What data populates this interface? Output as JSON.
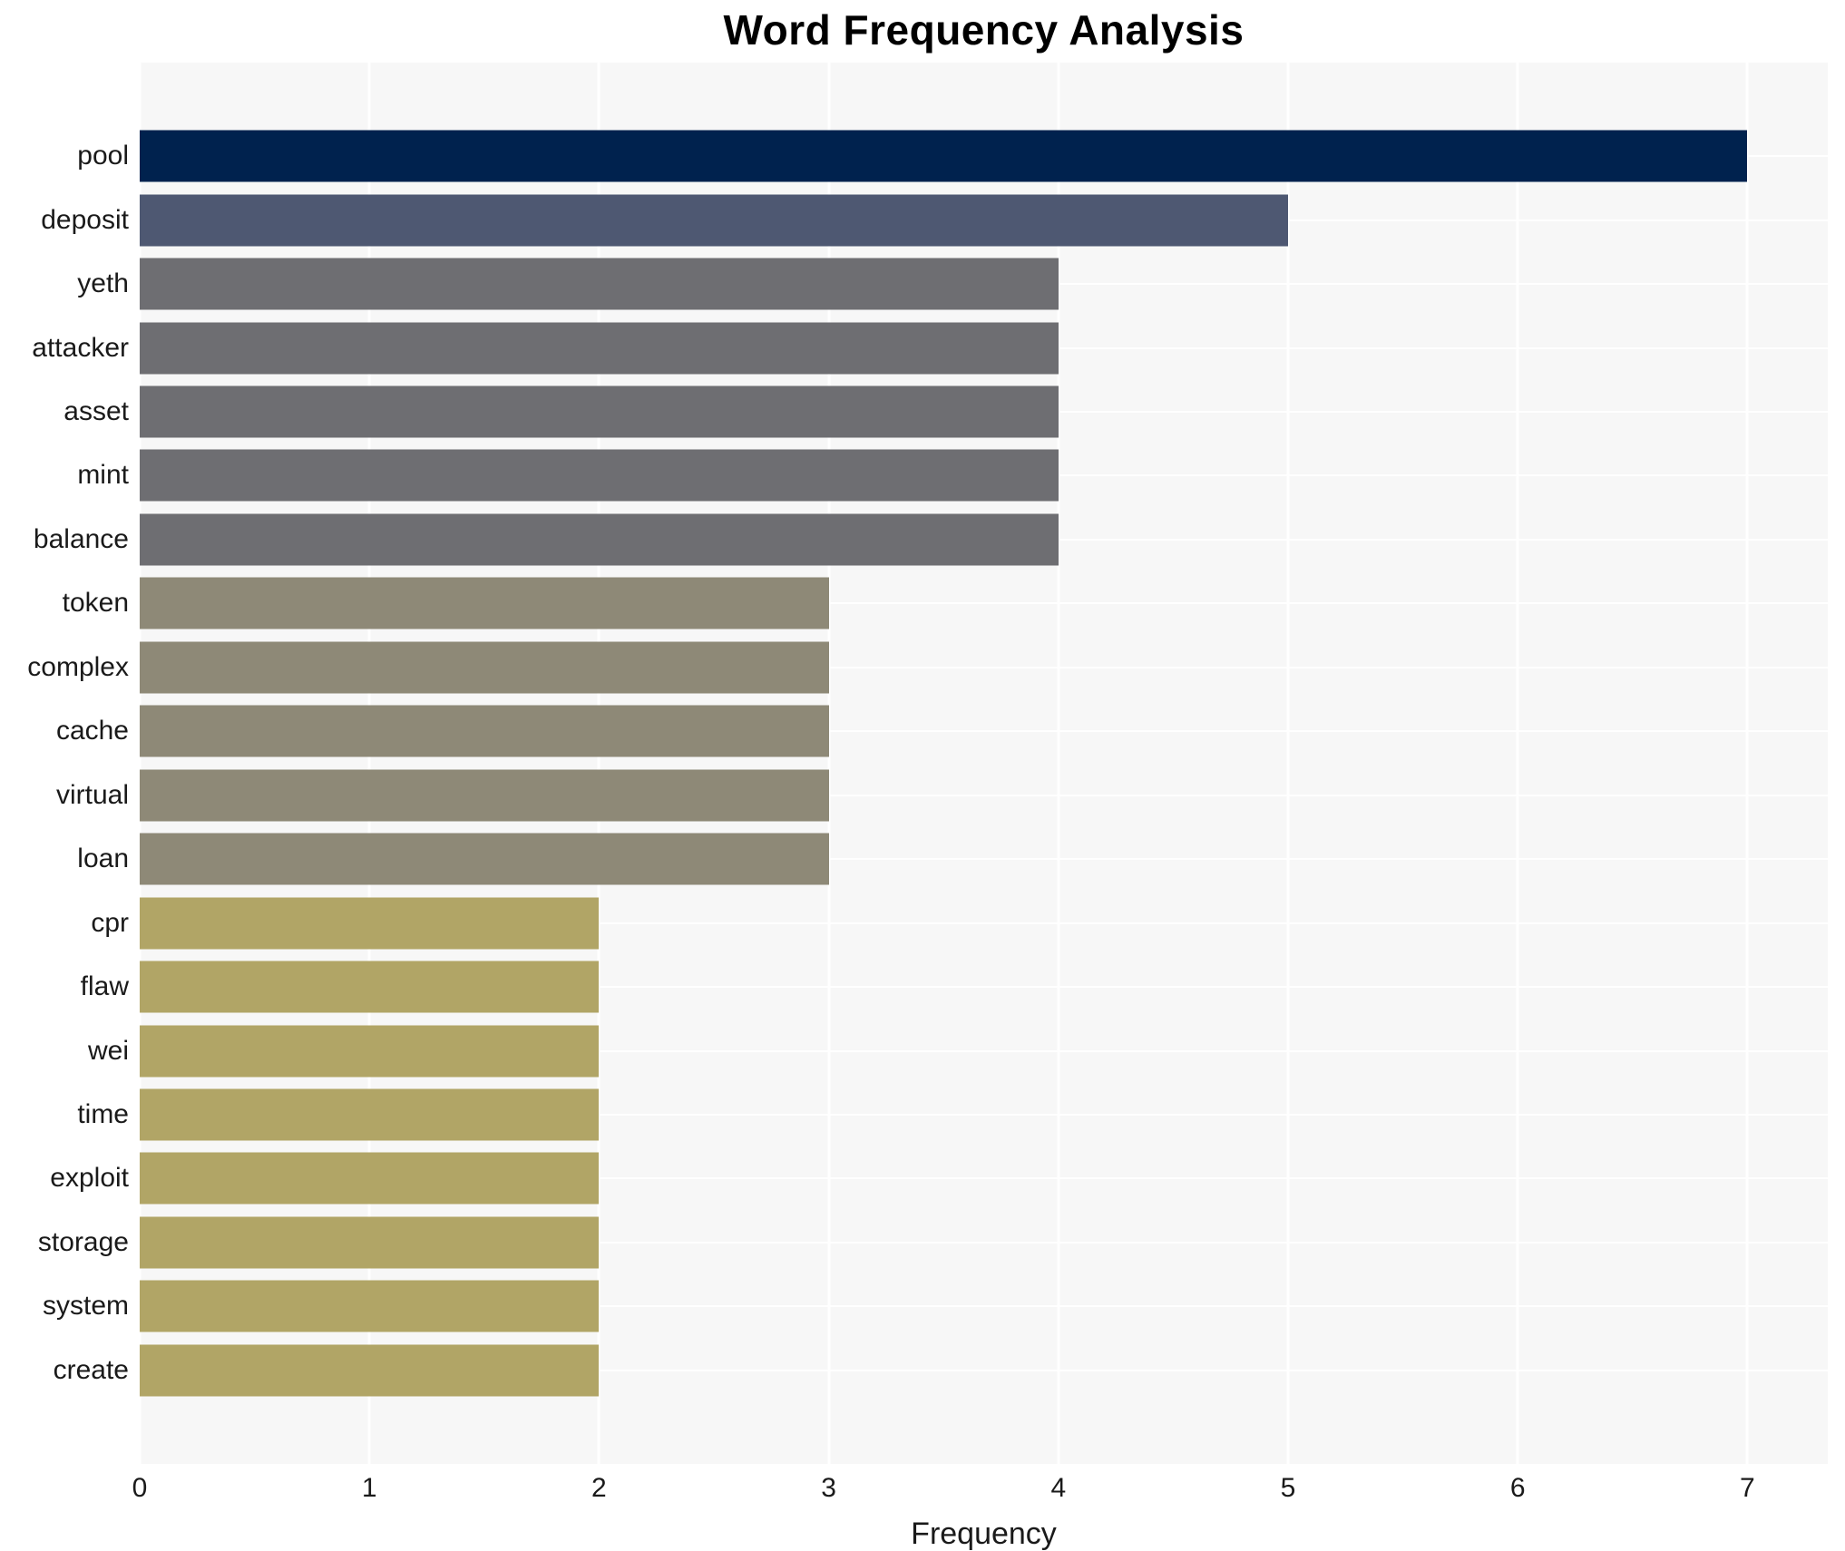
{
  "title": "Word Frequency Analysis",
  "chart_data": {
    "type": "bar",
    "orientation": "horizontal",
    "title": "Word Frequency Analysis",
    "xlabel": "Frequency",
    "ylabel": "",
    "categories": [
      "pool",
      "deposit",
      "yeth",
      "attacker",
      "asset",
      "mint",
      "balance",
      "token",
      "complex",
      "cache",
      "virtual",
      "loan",
      "cpr",
      "flaw",
      "wei",
      "time",
      "exploit",
      "storage",
      "system",
      "create"
    ],
    "values": [
      7,
      5,
      4,
      4,
      4,
      4,
      4,
      3,
      3,
      3,
      3,
      3,
      2,
      2,
      2,
      2,
      2,
      2,
      2,
      2
    ],
    "bar_colors": [
      "#00224e",
      "#4e5872",
      "#6e6e72",
      "#6e6e72",
      "#6e6e72",
      "#6e6e72",
      "#6e6e72",
      "#8e8977",
      "#8e8977",
      "#8e8977",
      "#8e8977",
      "#8e8977",
      "#b1a566",
      "#b1a566",
      "#b1a566",
      "#b1a566",
      "#b1a566",
      "#b1a566",
      "#b1a566",
      "#b1a566"
    ],
    "xlim": [
      0,
      7.35
    ],
    "xticks": [
      "0",
      "1",
      "2",
      "3",
      "4",
      "5",
      "6",
      "7"
    ],
    "grid": true,
    "legend": false,
    "plot_background": "#f7f7f7",
    "grid_color": "#ffffff",
    "text_color": "#1a1a1a"
  }
}
